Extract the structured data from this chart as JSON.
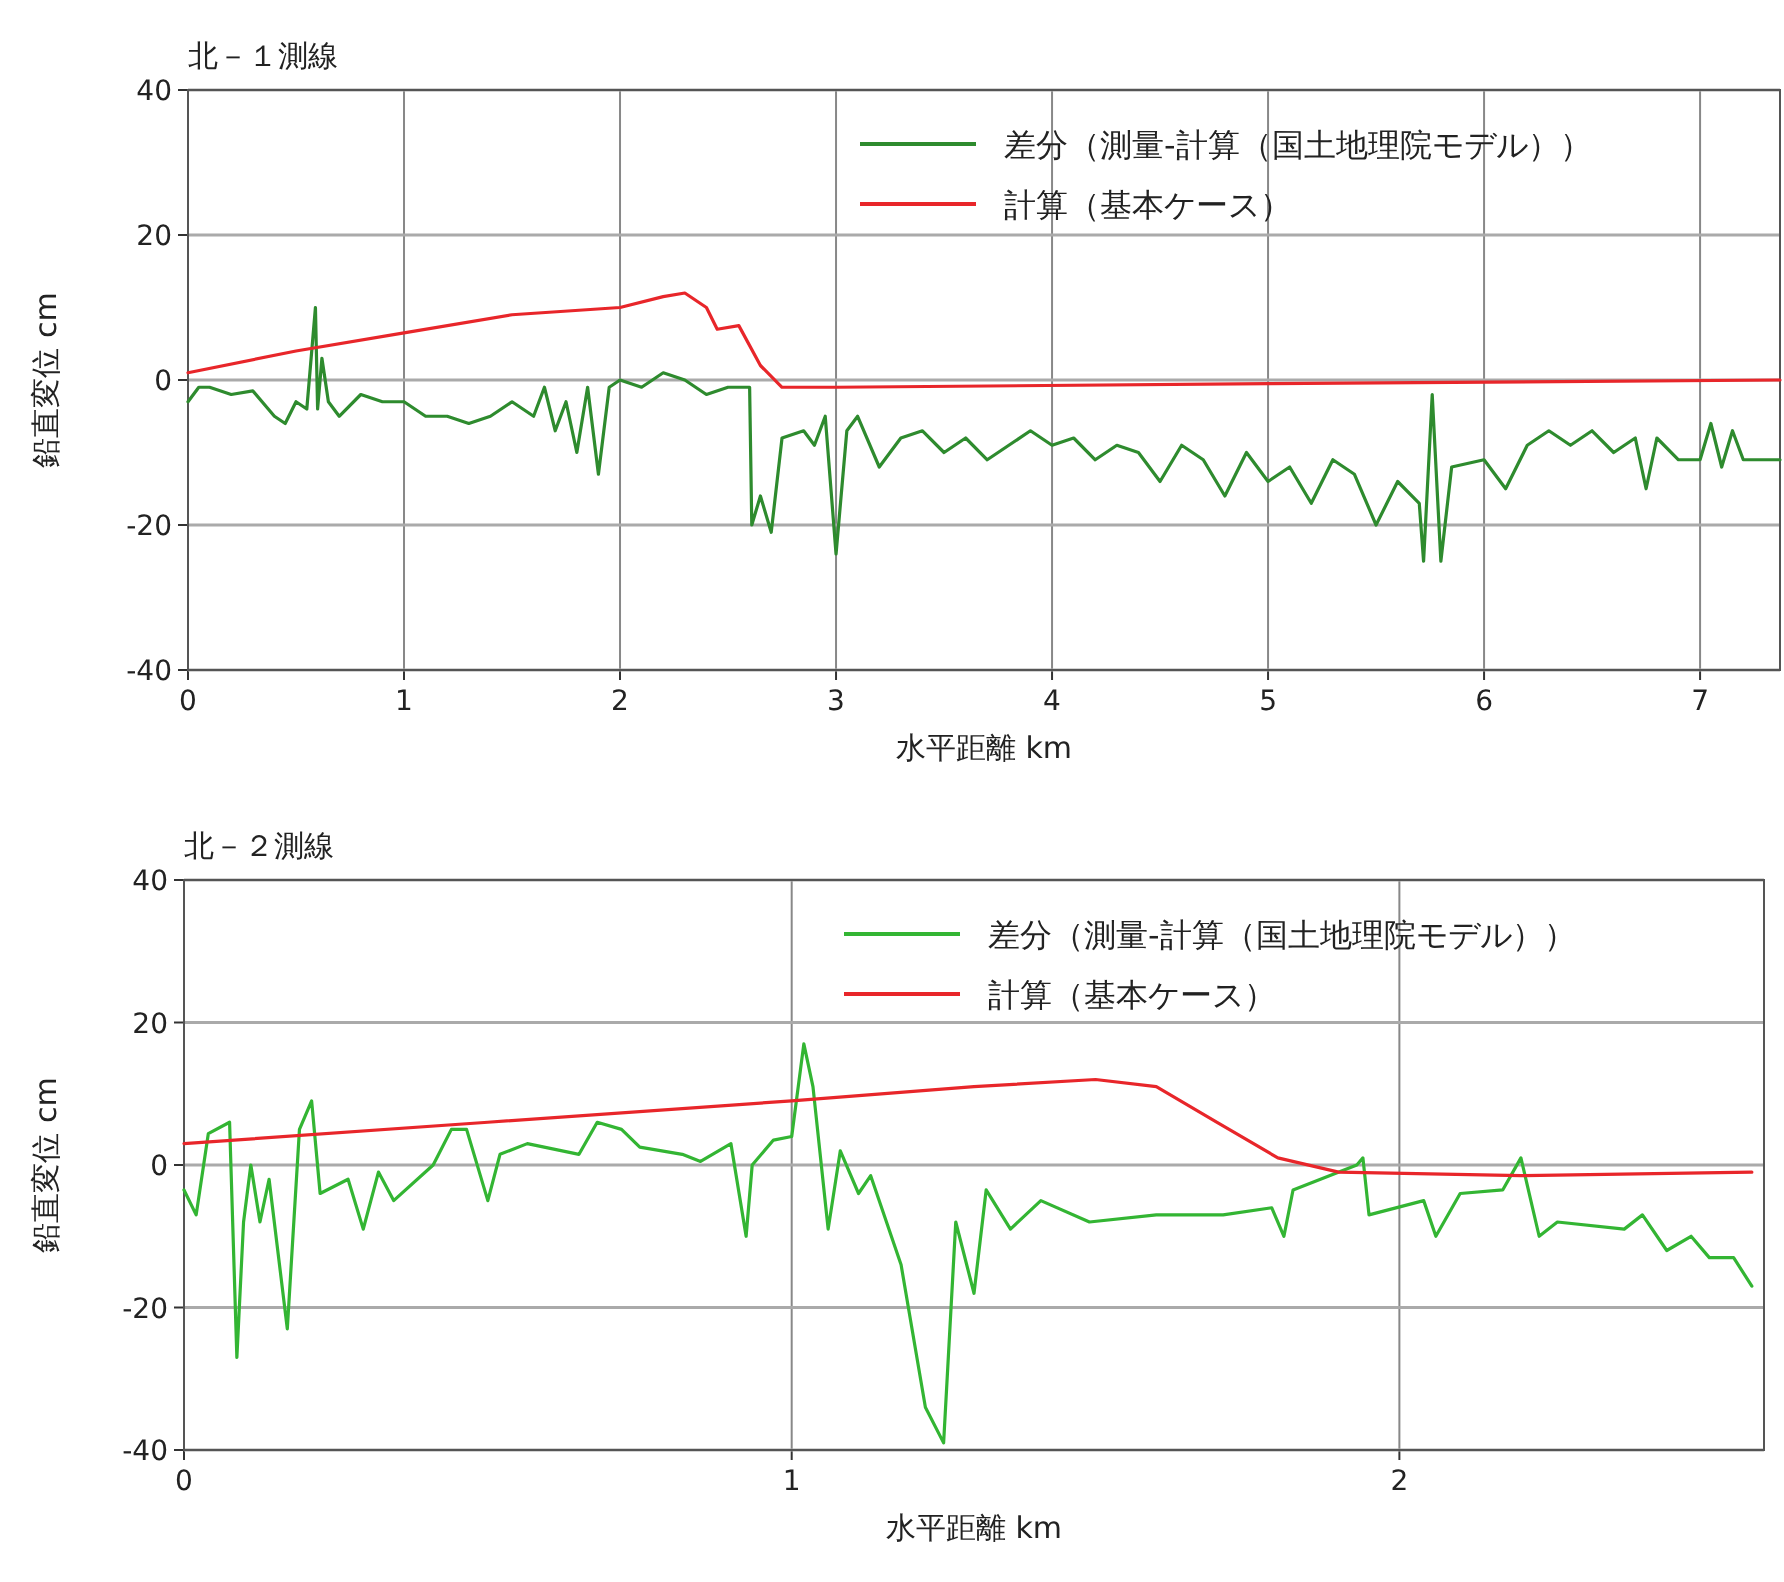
{
  "chart_data": [
    {
      "type": "line",
      "title": "北－１測線",
      "xlabel": "水平距離 km",
      "ylabel": "鉛直変位 cm",
      "xlim": [
        0,
        7.37
      ],
      "xticks": [
        0,
        1,
        2,
        3,
        4,
        5,
        6,
        7
      ],
      "ylim": [
        -40,
        40
      ],
      "yticks": [
        -40,
        -20,
        0,
        20,
        40
      ],
      "grid": true,
      "legend": "top right",
      "series": [
        {
          "name": "差分（測量-計算（国土地理院モデル））",
          "color": "#2e8b2e",
          "x": [
            0,
            0.05,
            0.1,
            0.2,
            0.3,
            0.4,
            0.45,
            0.5,
            0.55,
            0.59,
            0.6,
            0.62,
            0.65,
            0.7,
            0.8,
            0.9,
            1.0,
            1.1,
            1.2,
            1.3,
            1.4,
            1.5,
            1.6,
            1.65,
            1.7,
            1.75,
            1.8,
            1.85,
            1.9,
            1.95,
            2.0,
            2.1,
            2.2,
            2.3,
            2.4,
            2.5,
            2.55,
            2.6,
            2.61,
            2.65,
            2.7,
            2.75,
            2.85,
            2.9,
            2.95,
            3.0,
            3.05,
            3.1,
            3.2,
            3.3,
            3.4,
            3.5,
            3.6,
            3.7,
            3.8,
            3.9,
            4.0,
            4.1,
            4.2,
            4.3,
            4.4,
            4.5,
            4.6,
            4.7,
            4.8,
            4.9,
            5.0,
            5.1,
            5.2,
            5.3,
            5.4,
            5.5,
            5.6,
            5.7,
            5.72,
            5.76,
            5.8,
            5.85,
            6.0,
            6.1,
            6.2,
            6.3,
            6.4,
            6.5,
            6.6,
            6.7,
            6.75,
            6.8,
            6.9,
            7.0,
            7.05,
            7.1,
            7.15,
            7.2,
            7.37
          ],
          "values": [
            -3,
            -1,
            -1,
            -2,
            -1.5,
            -5,
            -6,
            -3,
            -4,
            10,
            -4,
            3,
            -3,
            -5,
            -2,
            -3,
            -3,
            -5,
            -5,
            -6,
            -5,
            -3,
            -5,
            -1,
            -7,
            -3,
            -10,
            -1,
            -13,
            -1,
            0,
            -1,
            1,
            0,
            -2,
            -1,
            -1,
            -1,
            -20,
            -16,
            -21,
            -8,
            -7,
            -9,
            -5,
            -24,
            -7,
            -5,
            -12,
            -8,
            -7,
            -10,
            -8,
            -11,
            -9,
            -7,
            -9,
            -8,
            -11,
            -9,
            -10,
            -14,
            -9,
            -11,
            -16,
            -10,
            -14,
            -12,
            -17,
            -11,
            -13,
            -20,
            -14,
            -17,
            -25,
            -2,
            -25,
            -12,
            -11,
            -15,
            -9,
            -7,
            -9,
            -7,
            -10,
            -8,
            -15,
            -8,
            -11,
            -11,
            -6,
            -12,
            -7,
            -11,
            -11
          ]
        },
        {
          "name": "計算（基本ケース）",
          "color": "#e8262a",
          "x": [
            0,
            0.5,
            1,
            1.5,
            2,
            2.2,
            2.3,
            2.4,
            2.45,
            2.55,
            2.65,
            2.75,
            3,
            5,
            7.37
          ],
          "values": [
            1,
            4,
            6.5,
            9,
            10,
            11.5,
            12,
            10,
            7,
            7.5,
            2,
            -1,
            -1,
            -0.5,
            0
          ]
        }
      ]
    },
    {
      "type": "line",
      "title": "北－２測線",
      "xlabel": "水平距離 km",
      "ylabel": "鉛直変位 cm",
      "xlim": [
        0,
        2.6
      ],
      "xticks": [
        0,
        1,
        2
      ],
      "ylim": [
        -40,
        40
      ],
      "yticks": [
        -40,
        -20,
        0,
        20,
        40
      ],
      "grid": true,
      "legend": "top right",
      "series": [
        {
          "name": "差分（測量-計算（国土地理院モデル））",
          "color": "#33b533",
          "x": [
            0,
            0.02,
            0.04,
            0.075,
            0.087,
            0.098,
            0.11,
            0.125,
            0.14,
            0.17,
            0.19,
            0.21,
            0.224,
            0.27,
            0.295,
            0.32,
            0.345,
            0.41,
            0.44,
            0.465,
            0.5,
            0.52,
            0.565,
            0.65,
            0.68,
            0.72,
            0.75,
            0.82,
            0.85,
            0.9,
            0.925,
            0.935,
            0.97,
            1.0,
            1.02,
            1.035,
            1.06,
            1.08,
            1.11,
            1.13,
            1.18,
            1.22,
            1.25,
            1.27,
            1.3,
            1.32,
            1.36,
            1.41,
            1.49,
            1.6,
            1.71,
            1.79,
            1.81,
            1.825,
            1.93,
            1.94,
            1.95,
            2.04,
            2.06,
            2.1,
            2.17,
            2.2,
            2.23,
            2.26,
            2.37,
            2.4,
            2.44,
            2.48,
            2.51,
            2.55,
            2.58
          ],
          "values": [
            -3.5,
            -7,
            4.4,
            6,
            -27,
            -8,
            0,
            -8,
            -2,
            -23,
            5,
            9,
            -4,
            -2,
            -9,
            -1,
            -5,
            0,
            5,
            5,
            -5,
            1.5,
            3,
            1.5,
            6,
            5,
            2.5,
            1.5,
            0.5,
            3,
            -10,
            0,
            3.5,
            4,
            17,
            11,
            -9,
            2,
            -4,
            -1.5,
            -14,
            -34,
            -39,
            -8,
            -18,
            -3.5,
            -9,
            -5,
            -8,
            -7,
            -7,
            -6,
            -10,
            -3.5,
            0,
            1,
            -7,
            -5,
            -10,
            -4,
            -3.5,
            1,
            -10,
            -8,
            -9,
            -7,
            -12,
            -10,
            -13,
            -13,
            -17
          ]
        },
        {
          "name": "計算（基本ケース）",
          "color": "#e8262a",
          "x": [
            0,
            0.5,
            1,
            1.3,
            1.5,
            1.6,
            1.7,
            1.8,
            1.9,
            2.2,
            2.58
          ],
          "values": [
            3,
            6,
            9,
            11,
            12,
            11,
            6,
            1,
            -1,
            -1.5,
            -1
          ]
        }
      ]
    }
  ]
}
